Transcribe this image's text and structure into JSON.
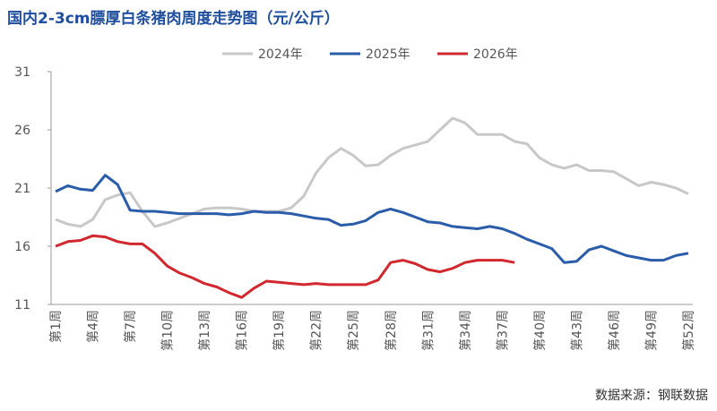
{
  "chart_data": {
    "type": "line",
    "title": "国内2-3cm膘厚白条猪肉周度走势图（元/公斤）",
    "source": "数据来源：钢联数据",
    "categories": [
      "第1周",
      null,
      null,
      "第4周",
      null,
      null,
      "第7周",
      null,
      null,
      "第10周",
      null,
      null,
      "第13周",
      null,
      null,
      "第16周",
      null,
      null,
      "第19周",
      null,
      null,
      "第22周",
      null,
      null,
      "第25周",
      null,
      null,
      "第28周",
      null,
      null,
      "第31周",
      null,
      null,
      "第34周",
      null,
      null,
      "第37周",
      null,
      null,
      "第40周",
      null,
      null,
      "第43周",
      null,
      null,
      "第46周",
      null,
      null,
      "第49周",
      null,
      null,
      "第52周"
    ],
    "series": [
      {
        "name": "2024年",
        "color": "#c8c8c8",
        "values": [
          18.3,
          17.9,
          17.7,
          18.3,
          20.0,
          20.4,
          20.6,
          19.0,
          17.7,
          18.0,
          18.4,
          18.8,
          19.2,
          19.3,
          19.3,
          19.2,
          19.0,
          19.0,
          19.0,
          19.3,
          20.3,
          22.3,
          23.6,
          24.4,
          23.8,
          22.9,
          23.0,
          23.8,
          24.4,
          24.7,
          25.0,
          26.0,
          27.0,
          26.6,
          25.6,
          25.6,
          25.6,
          25.0,
          24.8,
          23.6,
          23.0,
          22.7,
          23.0,
          22.5,
          22.5,
          22.4,
          21.8,
          21.2,
          21.5,
          21.3,
          21.0,
          20.5
        ]
      },
      {
        "name": "2025年",
        "color": "#2a5caa",
        "values": [
          20.7,
          21.2,
          20.9,
          20.8,
          22.1,
          21.3,
          19.1,
          19.0,
          19.0,
          18.9,
          18.8,
          18.8,
          18.8,
          18.8,
          18.7,
          18.8,
          19.0,
          18.9,
          18.9,
          18.8,
          18.6,
          18.4,
          18.3,
          17.8,
          17.9,
          18.2,
          18.9,
          19.2,
          18.9,
          18.5,
          18.1,
          18.0,
          17.7,
          17.6,
          17.5,
          17.7,
          17.5,
          17.1,
          16.6,
          16.2,
          15.8,
          14.6,
          14.7,
          15.7,
          16.0,
          15.6,
          15.2,
          15.0,
          14.8,
          14.8,
          15.2,
          15.4
        ]
      },
      {
        "name": "2026年",
        "color": "#d0282e",
        "values": [
          16.0,
          16.4,
          16.5,
          16.9,
          16.8,
          16.4,
          16.2,
          16.2,
          15.4,
          14.3,
          13.7,
          13.3,
          12.8,
          12.5,
          12.0,
          11.6,
          12.4,
          13.0,
          12.9,
          12.8,
          12.7,
          12.8,
          12.7,
          12.7,
          12.7,
          12.7,
          13.1,
          14.6,
          14.8,
          14.5,
          14.0,
          13.8,
          14.1,
          14.6,
          14.8,
          14.8,
          14.8,
          14.6,
          null,
          null,
          null,
          null,
          null,
          null,
          null,
          null,
          null,
          null,
          null,
          null,
          null,
          null
        ]
      }
    ],
    "ylim": [
      11,
      31
    ],
    "yticks": [
      11,
      16,
      21,
      26,
      31
    ],
    "grid": false,
    "legend": "top"
  }
}
